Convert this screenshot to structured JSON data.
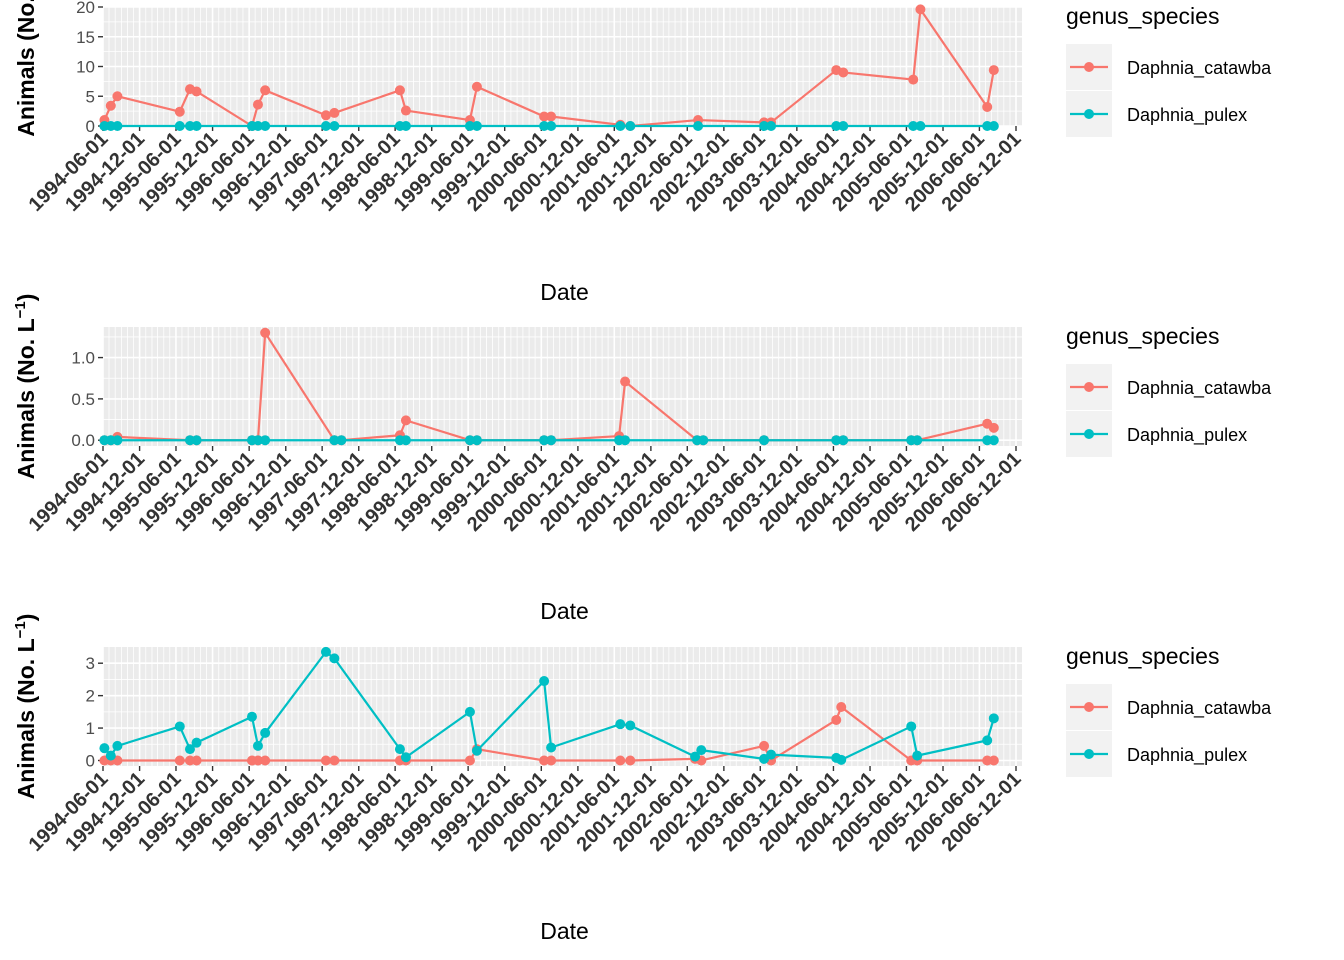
{
  "chart_data": [
    {
      "type": "line",
      "xlabel": "Date",
      "ylabel": "Animals (No.",
      "ylim": [
        0,
        20
      ],
      "yticks": [
        0,
        5,
        10,
        15,
        20
      ],
      "ytick_labels": [
        "0",
        "5",
        "10",
        "15",
        "20"
      ],
      "xlim": [
        "1994-06-01",
        "2006-12-31"
      ],
      "xtick_labels": [
        "1994-06-01",
        "1994-12-01",
        "1995-06-01",
        "1995-12-01",
        "1996-06-01",
        "1996-12-01",
        "1997-06-01",
        "1997-12-01",
        "1998-06-01",
        "1998-12-01",
        "1999-06-01",
        "1999-12-01",
        "2000-06-01",
        "2000-12-01",
        "2001-06-01",
        "2001-12-01",
        "2002-06-01",
        "2002-12-01",
        "2003-06-01",
        "2003-12-01",
        "2004-06-01",
        "2004-12-01",
        "2005-06-01",
        "2005-12-01",
        "2006-06-01",
        "2006-12-01"
      ],
      "legend": {
        "title": "genus_species",
        "position": "right"
      },
      "series": [
        {
          "name": "Daphnia_catawba",
          "color": "#F8766D",
          "points": [
            [
              "1994-06-08",
              1.0
            ],
            [
              "1994-07-10",
              3.4
            ],
            [
              "1994-08-12",
              5.0
            ],
            [
              "1995-06-20",
              2.4
            ],
            [
              "1995-08-10",
              6.2
            ],
            [
              "1995-09-12",
              5.8
            ],
            [
              "1996-06-15",
              0.0
            ],
            [
              "1996-07-15",
              3.6
            ],
            [
              "1996-08-20",
              6.0
            ],
            [
              "1997-06-20",
              1.8
            ],
            [
              "1997-08-01",
              2.2
            ],
            [
              "1998-06-25",
              6.0
            ],
            [
              "1998-07-25",
              2.6
            ],
            [
              "1999-06-10",
              1.0
            ],
            [
              "1999-07-15",
              6.6
            ],
            [
              "2000-06-15",
              1.6
            ],
            [
              "2000-07-20",
              1.6
            ],
            [
              "2001-07-01",
              0.2
            ],
            [
              "2001-08-20",
              0.0
            ],
            [
              "2002-07-25",
              1.0
            ],
            [
              "2003-06-20",
              0.6
            ],
            [
              "2003-07-25",
              0.6
            ],
            [
              "2004-06-15",
              9.4
            ],
            [
              "2004-07-20",
              9.0
            ],
            [
              "2005-07-05",
              7.8
            ],
            [
              "2005-08-10",
              19.6
            ],
            [
              "2006-07-10",
              3.2
            ],
            [
              "2006-08-12",
              9.4
            ]
          ]
        },
        {
          "name": "Daphnia_pulex",
          "color": "#00BFC4",
          "points": [
            [
              "1994-06-08",
              0.0
            ],
            [
              "1994-07-10",
              0.0
            ],
            [
              "1994-08-12",
              0.0
            ],
            [
              "1995-06-20",
              0.0
            ],
            [
              "1995-08-10",
              0.0
            ],
            [
              "1995-09-12",
              0.0
            ],
            [
              "1996-06-15",
              0.0
            ],
            [
              "1996-07-15",
              0.0
            ],
            [
              "1996-08-20",
              0.0
            ],
            [
              "1997-06-20",
              0.0
            ],
            [
              "1997-08-01",
              0.0
            ],
            [
              "1998-06-25",
              0.0
            ],
            [
              "1998-07-25",
              0.0
            ],
            [
              "1999-06-10",
              0.0
            ],
            [
              "1999-07-15",
              0.0
            ],
            [
              "2000-06-15",
              0.0
            ],
            [
              "2000-07-20",
              0.0
            ],
            [
              "2001-07-01",
              0.0
            ],
            [
              "2001-08-20",
              0.0
            ],
            [
              "2002-07-25",
              0.0
            ],
            [
              "2003-06-20",
              0.0
            ],
            [
              "2003-07-25",
              0.0
            ],
            [
              "2004-06-15",
              0.0
            ],
            [
              "2004-07-20",
              0.0
            ],
            [
              "2005-07-05",
              0.0
            ],
            [
              "2005-08-10",
              0.0
            ],
            [
              "2006-07-10",
              0.0
            ],
            [
              "2006-08-12",
              0.0
            ]
          ]
        }
      ]
    },
    {
      "type": "line",
      "xlabel": "Date",
      "ylabel": "Animals (No. L",
      "ylabel_superscript": "−1",
      "ylabel_suffix": ")",
      "ylim": [
        -0.07,
        1.37
      ],
      "yticks": [
        0,
        0.5,
        1.0
      ],
      "ytick_labels": [
        "0.0",
        "0.5",
        "1.0"
      ],
      "xlim": [
        "1994-06-01",
        "2006-12-31"
      ],
      "xtick_labels": [
        "1994-06-01",
        "1994-12-01",
        "1995-06-01",
        "1995-12-01",
        "1996-06-01",
        "1996-12-01",
        "1997-06-01",
        "1997-12-01",
        "1998-06-01",
        "1998-12-01",
        "1999-06-01",
        "1999-12-01",
        "2000-06-01",
        "2000-12-01",
        "2001-06-01",
        "2001-12-01",
        "2002-06-01",
        "2002-12-01",
        "2003-06-01",
        "2003-12-01",
        "2004-06-01",
        "2004-12-01",
        "2005-06-01",
        "2005-12-01",
        "2006-06-01",
        "2006-12-01"
      ],
      "legend": {
        "title": "genus_species",
        "position": "right"
      },
      "series": [
        {
          "name": "Daphnia_catawba",
          "color": "#F8766D",
          "points": [
            [
              "1994-06-08",
              0.0
            ],
            [
              "1994-07-10",
              0.0
            ],
            [
              "1994-08-12",
              0.04
            ],
            [
              "1995-08-10",
              0.0
            ],
            [
              "1995-09-12",
              0.0
            ],
            [
              "1996-06-15",
              0.0
            ],
            [
              "1996-07-15",
              0.0
            ],
            [
              "1996-08-20",
              1.3
            ],
            [
              "1997-08-01",
              0.0
            ],
            [
              "1997-09-05",
              0.0
            ],
            [
              "1998-06-25",
              0.06
            ],
            [
              "1998-07-25",
              0.24
            ],
            [
              "1999-06-10",
              0.0
            ],
            [
              "1999-07-15",
              0.0
            ],
            [
              "2000-06-15",
              0.0
            ],
            [
              "2000-07-20",
              0.0
            ],
            [
              "2001-06-25",
              0.05
            ],
            [
              "2001-07-25",
              0.71
            ],
            [
              "2002-07-20",
              0.0
            ],
            [
              "2002-08-20",
              0.0
            ],
            [
              "2003-06-20",
              0.0
            ],
            [
              "2004-06-15",
              0.0
            ],
            [
              "2004-07-20",
              0.0
            ],
            [
              "2005-06-25",
              0.0
            ],
            [
              "2005-07-25",
              0.0
            ],
            [
              "2006-07-10",
              0.2
            ],
            [
              "2006-08-12",
              0.15
            ]
          ]
        },
        {
          "name": "Daphnia_pulex",
          "color": "#00BFC4",
          "points": [
            [
              "1994-06-08",
              0.0
            ],
            [
              "1994-07-10",
              0.0
            ],
            [
              "1994-08-12",
              0.0
            ],
            [
              "1995-08-10",
              0.0
            ],
            [
              "1995-09-12",
              0.0
            ],
            [
              "1996-06-15",
              0.0
            ],
            [
              "1996-07-15",
              0.0
            ],
            [
              "1996-08-20",
              0.0
            ],
            [
              "1997-08-01",
              0.0
            ],
            [
              "1997-09-05",
              0.0
            ],
            [
              "1998-06-25",
              0.0
            ],
            [
              "1998-07-25",
              0.0
            ],
            [
              "1999-06-10",
              0.0
            ],
            [
              "1999-07-15",
              0.0
            ],
            [
              "2000-06-15",
              0.0
            ],
            [
              "2000-07-20",
              0.0
            ],
            [
              "2001-06-25",
              0.0
            ],
            [
              "2001-07-25",
              0.0
            ],
            [
              "2002-07-20",
              0.0
            ],
            [
              "2002-08-20",
              0.0
            ],
            [
              "2003-06-20",
              0.0
            ],
            [
              "2004-06-15",
              0.0
            ],
            [
              "2004-07-20",
              0.0
            ],
            [
              "2005-06-25",
              0.0
            ],
            [
              "2005-07-25",
              0.0
            ],
            [
              "2006-07-10",
              0.0
            ],
            [
              "2006-08-12",
              0.0
            ]
          ]
        }
      ]
    },
    {
      "type": "line",
      "xlabel": "Date",
      "ylabel": "Animals (No. L",
      "ylabel_superscript": "−1",
      "ylabel_suffix": ")",
      "ylim": [
        -0.17,
        3.5
      ],
      "yticks": [
        0,
        1,
        2,
        3
      ],
      "ytick_labels": [
        "0",
        "1",
        "2",
        "3"
      ],
      "xlim": [
        "1994-06-01",
        "2006-12-31"
      ],
      "xtick_labels": [
        "1994-06-01",
        "1994-12-01",
        "1995-06-01",
        "1995-12-01",
        "1996-06-01",
        "1996-12-01",
        "1997-06-01",
        "1997-12-01",
        "1998-06-01",
        "1998-12-01",
        "1999-06-01",
        "1999-12-01",
        "2000-06-01",
        "2000-12-01",
        "2001-06-01",
        "2001-12-01",
        "2002-06-01",
        "2002-12-01",
        "2003-06-01",
        "2003-12-01",
        "2004-06-01",
        "2004-12-01",
        "2005-06-01",
        "2005-12-01",
        "2006-06-01",
        "2006-12-01"
      ],
      "legend": {
        "title": "genus_species",
        "position": "right"
      },
      "series": [
        {
          "name": "Daphnia_catawba",
          "color": "#F8766D",
          "points": [
            [
              "1994-06-08",
              0.0
            ],
            [
              "1994-07-10",
              0.0
            ],
            [
              "1994-08-12",
              0.0
            ],
            [
              "1995-06-20",
              0.0
            ],
            [
              "1995-08-10",
              0.0
            ],
            [
              "1995-09-12",
              0.0
            ],
            [
              "1996-06-15",
              0.0
            ],
            [
              "1996-07-15",
              0.0
            ],
            [
              "1996-08-20",
              0.0
            ],
            [
              "1997-06-20",
              0.0
            ],
            [
              "1997-08-01",
              0.0
            ],
            [
              "1998-06-25",
              0.0
            ],
            [
              "1998-07-25",
              0.0
            ],
            [
              "1999-06-10",
              0.0
            ],
            [
              "1999-07-15",
              0.35
            ],
            [
              "2000-06-15",
              0.0
            ],
            [
              "2000-07-20",
              0.0
            ],
            [
              "2001-07-01",
              0.0
            ],
            [
              "2001-08-20",
              0.0
            ],
            [
              "2002-07-10",
              0.05
            ],
            [
              "2002-08-10",
              0.0
            ],
            [
              "2003-06-20",
              0.45
            ],
            [
              "2003-07-25",
              0.0
            ],
            [
              "2004-06-15",
              1.25
            ],
            [
              "2004-07-10",
              1.65
            ],
            [
              "2005-06-25",
              0.0
            ],
            [
              "2005-07-25",
              0.0
            ],
            [
              "2006-07-10",
              0.0
            ],
            [
              "2006-08-12",
              0.0
            ]
          ]
        },
        {
          "name": "Daphnia_pulex",
          "color": "#00BFC4",
          "points": [
            [
              "1994-06-08",
              0.38
            ],
            [
              "1994-07-10",
              0.15
            ],
            [
              "1994-08-12",
              0.45
            ],
            [
              "1995-06-20",
              1.05
            ],
            [
              "1995-08-10",
              0.35
            ],
            [
              "1995-09-12",
              0.55
            ],
            [
              "1996-06-15",
              1.35
            ],
            [
              "1996-07-15",
              0.45
            ],
            [
              "1996-08-20",
              0.85
            ],
            [
              "1997-06-20",
              3.35
            ],
            [
              "1997-08-01",
              3.15
            ],
            [
              "1998-06-25",
              0.35
            ],
            [
              "1998-07-25",
              0.1
            ],
            [
              "1999-06-10",
              1.5
            ],
            [
              "1999-07-15",
              0.3
            ],
            [
              "2000-06-15",
              2.45
            ],
            [
              "2000-07-20",
              0.4
            ],
            [
              "2001-07-01",
              1.12
            ],
            [
              "2001-08-20",
              1.08
            ],
            [
              "2002-07-10",
              0.12
            ],
            [
              "2002-08-10",
              0.32
            ],
            [
              "2003-06-20",
              0.05
            ],
            [
              "2003-07-25",
              0.18
            ],
            [
              "2004-06-15",
              0.08
            ],
            [
              "2004-07-10",
              0.02
            ],
            [
              "2005-06-25",
              1.05
            ],
            [
              "2005-07-25",
              0.15
            ],
            [
              "2006-07-10",
              0.62
            ],
            [
              "2006-08-12",
              1.3
            ]
          ]
        }
      ]
    }
  ]
}
